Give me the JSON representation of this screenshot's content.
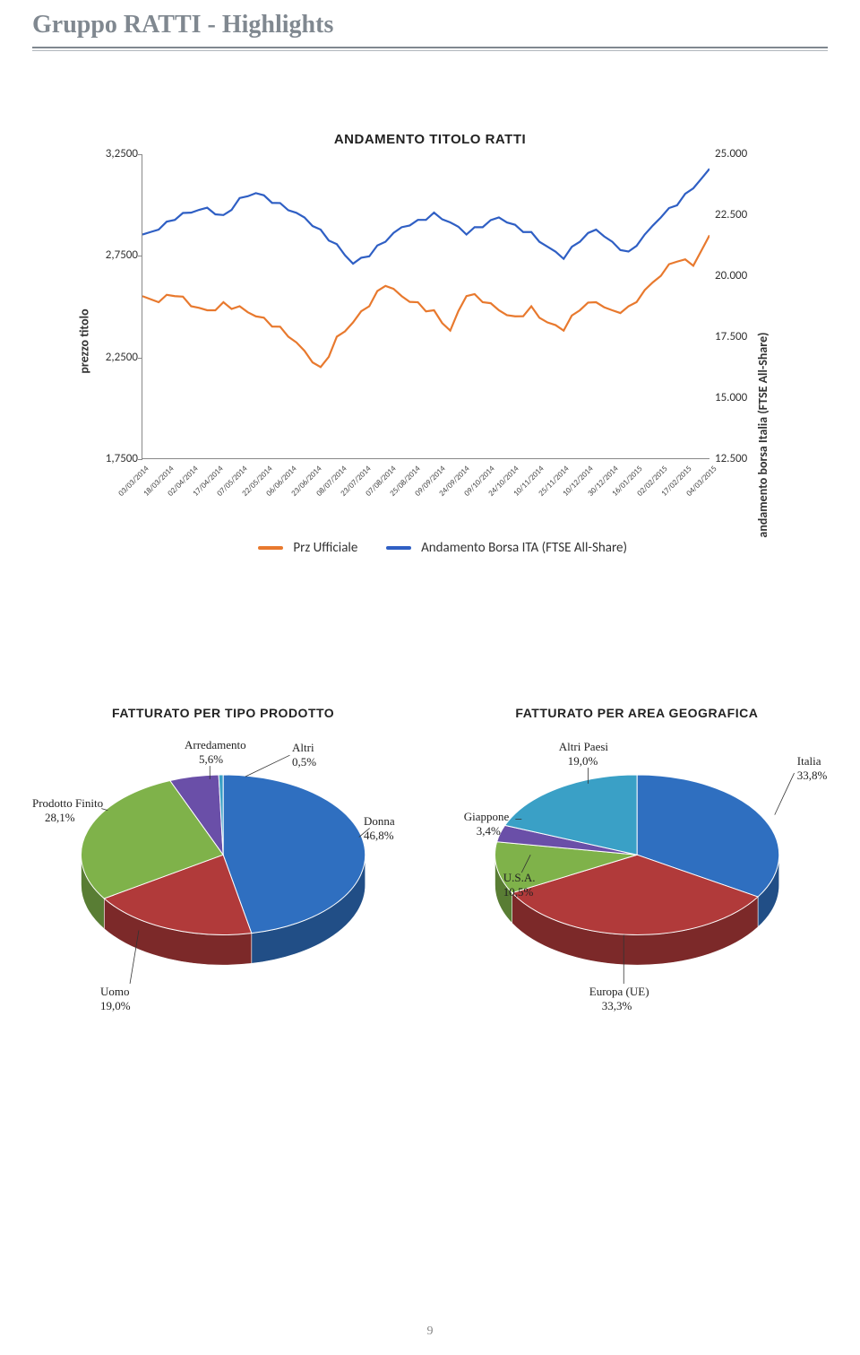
{
  "page": {
    "title": "Gruppo RATTI - Highlights",
    "number": "9"
  },
  "stock_chart": {
    "type": "line",
    "title": "ANDAMENTO TITOLO RATTI",
    "left_axis_label": "prezzo titolo",
    "right_axis_label": "andamento borsa Italia (FTSE All-Share)",
    "left_ylim": [
      1.75,
      3.25
    ],
    "right_ylim": [
      12500,
      25000
    ],
    "left_ticks": [
      "3,2500",
      "2,7500",
      "2,2500",
      "1,7500"
    ],
    "right_ticks": [
      "25.000",
      "22.500",
      "20.000",
      "17.500",
      "15.000",
      "12.500"
    ],
    "x_labels": [
      "03/03/2014",
      "18/03/2014",
      "02/04/2014",
      "17/04/2014",
      "07/05/2014",
      "22/05/2014",
      "06/06/2014",
      "23/06/2014",
      "08/07/2014",
      "23/07/2014",
      "07/08/2014",
      "25/08/2014",
      "09/09/2014",
      "24/09/2014",
      "09/10/2014",
      "24/10/2014",
      "10/11/2014",
      "25/11/2014",
      "10/12/2014",
      "30/12/2014",
      "16/01/2015",
      "02/02/2015",
      "17/02/2015",
      "04/03/2015"
    ],
    "series": {
      "prz_ufficiale": {
        "label": "Prz Ufficiale",
        "color": "#e8792e",
        "line_width": 2.2,
        "data_right_scale": false,
        "values": [
          2.55,
          2.52,
          2.55,
          2.5,
          2.48,
          2.52,
          2.5,
          2.45,
          2.4,
          2.35,
          2.28,
          2.2,
          2.35,
          2.42,
          2.5,
          2.6,
          2.55,
          2.52,
          2.48,
          2.38,
          2.55,
          2.52,
          2.48,
          2.45,
          2.5,
          2.42,
          2.38,
          2.48,
          2.52,
          2.48,
          2.5,
          2.58,
          2.65,
          2.72,
          2.7,
          2.85
        ]
      },
      "ftse": {
        "label": "Andamento Borsa ITA (FTSE All-Share)",
        "color": "#2f5fc4",
        "line_width": 2.2,
        "data_right_scale": true,
        "values": [
          21700,
          21900,
          22300,
          22600,
          22800,
          22500,
          23200,
          23400,
          23000,
          22700,
          22400,
          21900,
          21300,
          20500,
          20800,
          21400,
          22000,
          22300,
          22600,
          22200,
          21700,
          22000,
          22400,
          22100,
          21800,
          21200,
          20700,
          21400,
          21900,
          21400,
          21000,
          21700,
          22400,
          22900,
          23600,
          24400
        ]
      }
    },
    "background_color": "#ffffff",
    "axis_color": "#888888"
  },
  "pie_product": {
    "type": "pie",
    "title": "FATTURATO PER TIPO PRODOTTO",
    "slices": [
      {
        "label": "Donna",
        "pct": "46,8%",
        "value": 46.8,
        "color": "#2f6fc0"
      },
      {
        "label": "Uomo",
        "pct": "19,0%",
        "value": 19.0,
        "color": "#b13a3a"
      },
      {
        "label": "Prodotto Finito",
        "pct": "28,1%",
        "value": 28.1,
        "color": "#7fb24a"
      },
      {
        "label": "Arredamento",
        "pct": "5,6%",
        "value": 5.6,
        "color": "#6a4fa8"
      },
      {
        "label": "Altri",
        "pct": "0,5%",
        "value": 0.5,
        "color": "#3aa0c6"
      }
    ]
  },
  "pie_geo": {
    "type": "pie",
    "title": "FATTURATO PER AREA GEOGRAFICA",
    "slices": [
      {
        "label": "Italia",
        "pct": "33,8%",
        "value": 33.8,
        "color": "#2f6fc0"
      },
      {
        "label": "Europa (UE)",
        "pct": "33,3%",
        "value": 33.3,
        "color": "#b13a3a"
      },
      {
        "label": "U.S.A.",
        "pct": "10,5%",
        "value": 10.5,
        "color": "#7fb24a"
      },
      {
        "label": "Giappone",
        "pct": "3,4%",
        "value": 3.4,
        "color": "#6a4fa8"
      },
      {
        "label": "Altri Paesi",
        "pct": "19,0%",
        "value": 19.0,
        "color": "#3aa0c6"
      }
    ]
  }
}
